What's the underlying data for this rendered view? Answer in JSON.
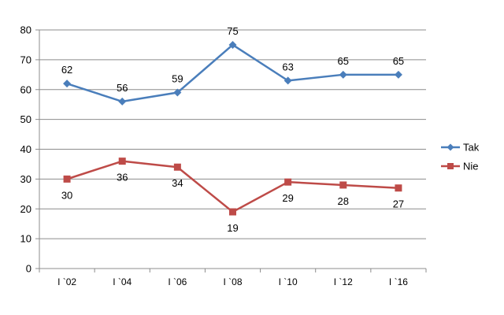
{
  "chart_data": {
    "type": "line",
    "categories": [
      "I `02",
      "I `04",
      "I `06",
      "I `08",
      "I `10",
      "I `12",
      "I `16"
    ],
    "series": [
      {
        "name": "Tak",
        "values": [
          62,
          56,
          59,
          75,
          63,
          65,
          65
        ],
        "color": "#4a7ebb",
        "marker": "diamond",
        "label_position": "above"
      },
      {
        "name": "Nie",
        "values": [
          30,
          36,
          34,
          19,
          29,
          28,
          27
        ],
        "color": "#be4b48",
        "marker": "square",
        "label_position": "below"
      }
    ],
    "ylim": [
      0,
      80
    ],
    "yticks": [
      "0",
      "10",
      "20",
      "30",
      "40",
      "50",
      "60",
      "70",
      "80"
    ],
    "grid": true,
    "legend": "right"
  }
}
